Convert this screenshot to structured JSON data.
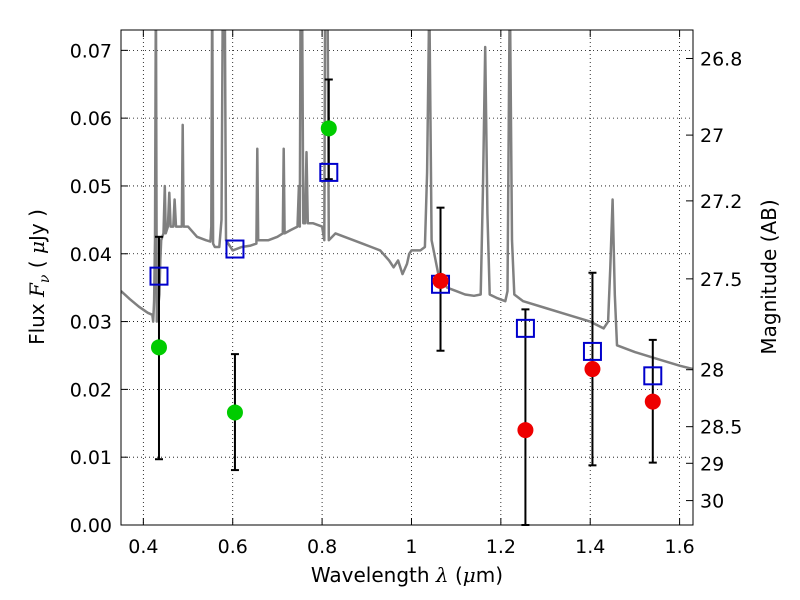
{
  "chart_data": {
    "type": "scatter",
    "xlabel": {
      "prefix": "Wavelength",
      "symbol": "λ",
      "unit_open": "(",
      "unit_mu": "μ",
      "unit_rest": "m)"
    },
    "ylabel": {
      "prefix": "Flux",
      "symbol": "F",
      "subscript": "ν",
      "unit_open": "(",
      "unit_mu": "μ",
      "unit_rest": "Jy )"
    },
    "y2label": "Magnitude (AB)",
    "xlim": [
      0.35,
      1.63
    ],
    "ylim": [
      0.0,
      0.073
    ],
    "grid": true,
    "xticks": [
      {
        "value": 0.4,
        "label": "0.4"
      },
      {
        "value": 0.6,
        "label": "0.6"
      },
      {
        "value": 0.8,
        "label": "0.8"
      },
      {
        "value": 1.0,
        "label": "1"
      },
      {
        "value": 1.2,
        "label": "1.2"
      },
      {
        "value": 1.4,
        "label": "1.4"
      },
      {
        "value": 1.6,
        "label": "1.6"
      }
    ],
    "yticks": [
      {
        "value": 0.0,
        "label": "0.00"
      },
      {
        "value": 0.01,
        "label": "0.01"
      },
      {
        "value": 0.02,
        "label": "0.02"
      },
      {
        "value": 0.03,
        "label": "0.03"
      },
      {
        "value": 0.04,
        "label": "0.04"
      },
      {
        "value": 0.05,
        "label": "0.05"
      },
      {
        "value": 0.06,
        "label": "0.06"
      },
      {
        "value": 0.07,
        "label": "0.07"
      }
    ],
    "y2ticks": [
      {
        "label": "26.8",
        "flux": 0.0688
      },
      {
        "label": "27",
        "flux": 0.0575
      },
      {
        "label": "27.2",
        "flux": 0.0478
      },
      {
        "label": "27.5",
        "flux": 0.0363
      },
      {
        "label": "28",
        "flux": 0.0229
      },
      {
        "label": "28.5",
        "flux": 0.0145
      },
      {
        "label": "29",
        "flux": 0.0091
      },
      {
        "label": "30",
        "flux": 0.0036
      }
    ],
    "model_spectrum": {
      "color": "#808080",
      "points": [
        [
          0.35,
          0.0345
        ],
        [
          0.37,
          0.0333
        ],
        [
          0.39,
          0.0322
        ],
        [
          0.41,
          0.0313
        ],
        [
          0.42,
          0.031
        ],
        [
          0.422,
          0.03
        ],
        [
          0.424,
          0.033
        ],
        [
          0.426,
          0.042
        ],
        [
          0.428,
          0.08
        ],
        [
          0.43,
          0.03
        ],
        [
          0.433,
          0.032
        ],
        [
          0.436,
          0.034
        ],
        [
          0.438,
          0.039
        ],
        [
          0.44,
          0.042
        ],
        [
          0.445,
          0.043
        ],
        [
          0.448,
          0.05
        ],
        [
          0.45,
          0.043
        ],
        [
          0.455,
          0.044
        ],
        [
          0.458,
          0.049
        ],
        [
          0.461,
          0.044
        ],
        [
          0.467,
          0.044
        ],
        [
          0.47,
          0.048
        ],
        [
          0.473,
          0.044
        ],
        [
          0.48,
          0.044
        ],
        [
          0.486,
          0.044
        ],
        [
          0.488,
          0.059
        ],
        [
          0.49,
          0.044
        ],
        [
          0.5,
          0.044
        ],
        [
          0.52,
          0.0425
        ],
        [
          0.54,
          0.042
        ],
        [
          0.55,
          0.0418
        ],
        [
          0.552,
          0.044
        ],
        [
          0.554,
          0.08
        ],
        [
          0.556,
          0.0415
        ],
        [
          0.56,
          0.041
        ],
        [
          0.57,
          0.041
        ],
        [
          0.575,
          0.045
        ],
        [
          0.578,
          0.08
        ],
        [
          0.582,
          0.08
        ],
        [
          0.585,
          0.042
        ],
        [
          0.6,
          0.0405
        ],
        [
          0.62,
          0.041
        ],
        [
          0.64,
          0.0412
        ],
        [
          0.653,
          0.0415
        ],
        [
          0.655,
          0.0555
        ],
        [
          0.657,
          0.042
        ],
        [
          0.68,
          0.042
        ],
        [
          0.7,
          0.0425
        ],
        [
          0.712,
          0.043
        ],
        [
          0.714,
          0.0555
        ],
        [
          0.716,
          0.043
        ],
        [
          0.73,
          0.0435
        ],
        [
          0.745,
          0.044
        ],
        [
          0.748,
          0.05
        ],
        [
          0.75,
          0.044
        ],
        [
          0.752,
          0.08
        ],
        [
          0.755,
          0.08
        ],
        [
          0.758,
          0.0445
        ],
        [
          0.762,
          0.0445
        ],
        [
          0.765,
          0.055
        ],
        [
          0.768,
          0.0445
        ],
        [
          0.78,
          0.0445
        ],
        [
          0.8,
          0.044
        ],
        [
          0.805,
          0.042
        ],
        [
          0.807,
          0.08
        ],
        [
          0.812,
          0.08
        ],
        [
          0.815,
          0.042
        ],
        [
          0.83,
          0.043
        ],
        [
          0.85,
          0.0425
        ],
        [
          0.87,
          0.042
        ],
        [
          0.89,
          0.0415
        ],
        [
          0.91,
          0.041
        ],
        [
          0.93,
          0.0405
        ],
        [
          0.95,
          0.039
        ],
        [
          0.96,
          0.038
        ],
        [
          0.97,
          0.039
        ],
        [
          0.98,
          0.037
        ],
        [
          0.99,
          0.0385
        ],
        [
          0.995,
          0.04
        ],
        [
          1.0,
          0.0405
        ],
        [
          1.02,
          0.0405
        ],
        [
          1.03,
          0.041
        ],
        [
          1.035,
          0.052
        ],
        [
          1.04,
          0.078
        ],
        [
          1.045,
          0.042
        ],
        [
          1.06,
          0.037
        ],
        [
          1.08,
          0.035
        ],
        [
          1.1,
          0.0345
        ],
        [
          1.12,
          0.034
        ],
        [
          1.14,
          0.0338
        ],
        [
          1.155,
          0.034
        ],
        [
          1.16,
          0.05
        ],
        [
          1.165,
          0.0705
        ],
        [
          1.17,
          0.046
        ],
        [
          1.175,
          0.034
        ],
        [
          1.19,
          0.0335
        ],
        [
          1.21,
          0.033
        ],
        [
          1.215,
          0.0345
        ],
        [
          1.22,
          0.08
        ],
        [
          1.225,
          0.042
        ],
        [
          1.23,
          0.034
        ],
        [
          1.25,
          0.033
        ],
        [
          1.3,
          0.032
        ],
        [
          1.35,
          0.031
        ],
        [
          1.4,
          0.03
        ],
        [
          1.43,
          0.029
        ],
        [
          1.44,
          0.03
        ],
        [
          1.445,
          0.038
        ],
        [
          1.45,
          0.048
        ],
        [
          1.455,
          0.034
        ],
        [
          1.46,
          0.0265
        ],
        [
          1.5,
          0.0255
        ],
        [
          1.55,
          0.0245
        ],
        [
          1.6,
          0.0235
        ],
        [
          1.63,
          0.023
        ]
      ]
    },
    "model_photometry": {
      "color": "#0000cc",
      "points": [
        {
          "x": 0.435,
          "y": 0.0367
        },
        {
          "x": 0.605,
          "y": 0.0407
        },
        {
          "x": 0.815,
          "y": 0.052
        },
        {
          "x": 1.065,
          "y": 0.0355
        },
        {
          "x": 1.255,
          "y": 0.029
        },
        {
          "x": 1.405,
          "y": 0.0256
        },
        {
          "x": 1.54,
          "y": 0.022
        }
      ]
    },
    "observed_optical": {
      "color": "#00cc00",
      "points": [
        {
          "x": 0.435,
          "y": 0.0262,
          "lo": 0.0097,
          "hi": 0.0425
        },
        {
          "x": 0.605,
          "y": 0.0166,
          "lo": 0.0081,
          "hi": 0.0252
        },
        {
          "x": 0.815,
          "y": 0.0585,
          "lo": 0.051,
          "hi": 0.0657
        }
      ]
    },
    "observed_nir": {
      "color": "#ee0000",
      "points": [
        {
          "x": 1.065,
          "y": 0.036,
          "lo": 0.0257,
          "hi": 0.0468
        },
        {
          "x": 1.255,
          "y": 0.014,
          "lo": 0.0,
          "hi": 0.0318
        },
        {
          "x": 1.405,
          "y": 0.023,
          "lo": 0.0088,
          "hi": 0.0372
        },
        {
          "x": 1.54,
          "y": 0.0182,
          "lo": 0.0092,
          "hi": 0.0273
        }
      ]
    }
  }
}
